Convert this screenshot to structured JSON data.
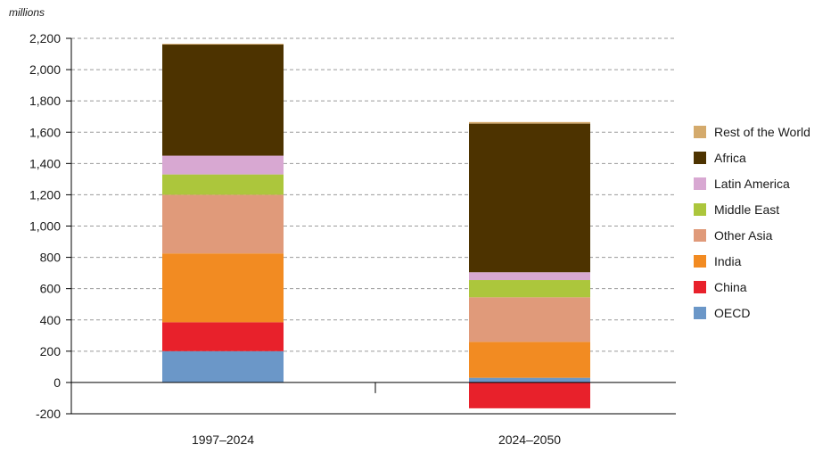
{
  "chart_data": {
    "type": "bar",
    "stacked": true,
    "unit_label": "millions",
    "title": "",
    "xlabel": "",
    "ylabel": "",
    "ylim": [
      -200,
      2200
    ],
    "ytick_step": 200,
    "yticks": [
      "2,200",
      "2,000",
      "1,800",
      "1,600",
      "1,400",
      "1,200",
      "1,000",
      "800",
      "600",
      "400",
      "200",
      "0",
      "-200"
    ],
    "grid": "horizontal-dashed",
    "legend_position": "right",
    "categories": [
      "1997–2024",
      "2024–2050"
    ],
    "series": [
      {
        "name": "OECD",
        "color": "#6b97c8",
        "values": [
          200,
          30
        ]
      },
      {
        "name": "China",
        "color": "#e8212b",
        "values": [
          185,
          -165
        ]
      },
      {
        "name": "India",
        "color": "#f28b22",
        "values": [
          440,
          230
        ]
      },
      {
        "name": "Other Asia",
        "color": "#e09a7a",
        "values": [
          375,
          285
        ]
      },
      {
        "name": "Middle East",
        "color": "#acc63c",
        "values": [
          130,
          110
        ]
      },
      {
        "name": "Latin America",
        "color": "#d8a8d2",
        "values": [
          120,
          50
        ]
      },
      {
        "name": "Africa",
        "color": "#4d3300",
        "values": [
          710,
          950
        ]
      },
      {
        "name": "Rest of the World",
        "color": "#d4aa6c",
        "values": [
          5,
          10
        ]
      }
    ]
  }
}
